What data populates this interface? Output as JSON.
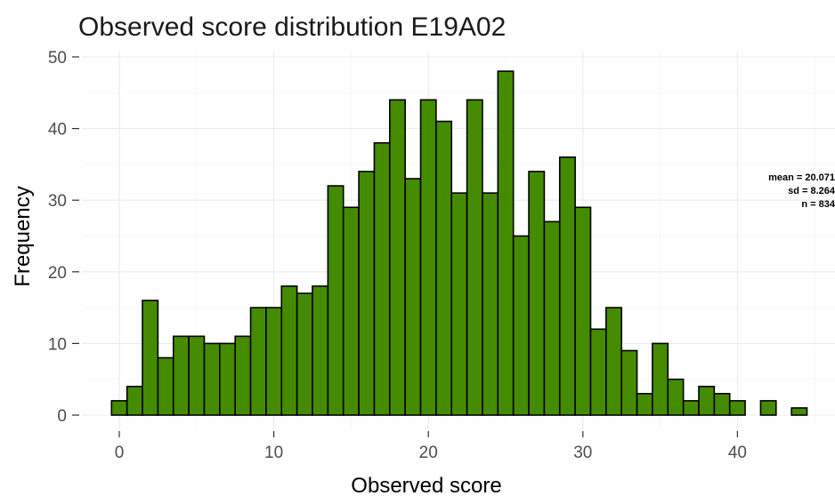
{
  "chart_data": {
    "type": "bar",
    "title": "Observed score distribution E19A02",
    "xlabel": "Observed score",
    "ylabel": "Frequency",
    "xlim": [
      -1,
      45
    ],
    "ylim": [
      0,
      52
    ],
    "x_ticks": [
      0,
      10,
      20,
      30,
      40
    ],
    "y_ticks": [
      0,
      10,
      20,
      30,
      40,
      50
    ],
    "grid": true,
    "bar_color": "#458B00",
    "bins": [
      0,
      1,
      2,
      3,
      4,
      5,
      6,
      7,
      8,
      9,
      10,
      11,
      12,
      13,
      14,
      15,
      16,
      17,
      18,
      19,
      20,
      21,
      22,
      23,
      24,
      25,
      26,
      27,
      28,
      29,
      30,
      31,
      32,
      33,
      34,
      35,
      36,
      37,
      38,
      39,
      40,
      41,
      42,
      43,
      44
    ],
    "values": [
      2,
      4,
      16,
      8,
      11,
      11,
      10,
      10,
      11,
      15,
      15,
      18,
      17,
      18,
      32,
      29,
      34,
      38,
      44,
      33,
      44,
      41,
      31,
      44,
      31,
      48,
      25,
      34,
      27,
      36,
      29,
      12,
      15,
      9,
      3,
      10,
      5,
      2,
      4,
      3,
      2,
      0,
      2,
      0,
      1
    ],
    "stats": {
      "mean_line": "mean = 20.071",
      "sd_line": "sd = 8.264",
      "n_line": "n =  834"
    }
  }
}
